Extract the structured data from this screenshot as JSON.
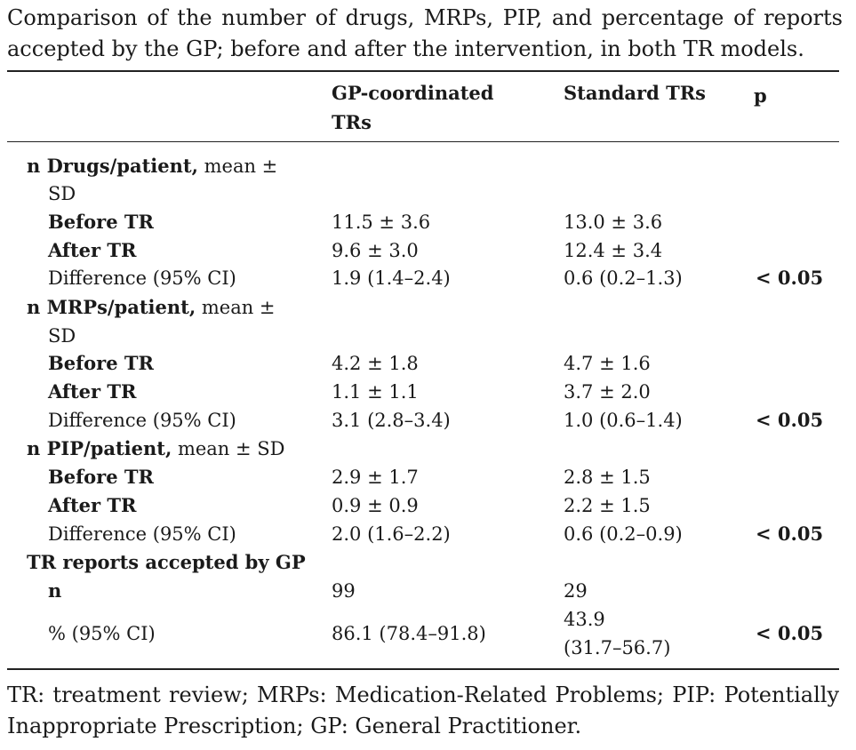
{
  "caption": "Comparison of the number of drugs, MRPs, PIP, and percentage of reports accepted by the GP; before and after the intervention, in both TR models.",
  "header": {
    "col1_line1": "GP-coordinated",
    "col1_line2": "TRs",
    "col2": "Standard TRs",
    "col3": "p"
  },
  "sections": {
    "drugs": {
      "title_bold": "n Drugs/patient,",
      "title_rest": " mean ±",
      "title_line2": "SD",
      "before_label": "Before TR",
      "before_gp": "11.5 ± 3.6",
      "before_std": "13.0 ± 3.6",
      "after_label": "After TR",
      "after_gp": "9.6 ± 3.0",
      "after_std": "12.4 ± 3.4",
      "diff_label": "Difference (95% CI)",
      "diff_gp": "1.9 (1.4–2.4)",
      "diff_std": "0.6 (0.2–1.3)",
      "p": "< 0.05"
    },
    "mrps": {
      "title_bold": "n MRPs/patient,",
      "title_rest": " mean ±",
      "title_line2": "SD",
      "before_label": "Before TR",
      "before_gp": "4.2 ± 1.8",
      "before_std": "4.7 ± 1.6",
      "after_label": "After TR",
      "after_gp": "1.1 ± 1.1",
      "after_std": "3.7 ± 2.0",
      "diff_label": "Difference (95% CI)",
      "diff_gp": "3.1 (2.8–3.4)",
      "diff_std": "1.0 (0.6–1.4)",
      "p": "< 0.05"
    },
    "pip": {
      "title_bold": "n PIP/patient,",
      "title_rest": " mean ± SD",
      "before_label": "Before TR",
      "before_gp": "2.9 ± 1.7",
      "before_std": "2.8 ± 1.5",
      "after_label": "After TR",
      "after_gp": "0.9 ± 0.9",
      "after_std": "2.2 ± 1.5",
      "diff_label": "Difference (95% CI)",
      "diff_gp": "2.0 (1.6–2.2)",
      "diff_std": "0.6 (0.2–0.9)",
      "p": "< 0.05"
    },
    "reports": {
      "title": "TR reports accepted by GP",
      "n_label": "n",
      "n_gp": "99",
      "n_std": "29",
      "pct_label": "% (95% CI)",
      "pct_gp": "86.1 (78.4–91.8)",
      "pct_std_line1": "43.9",
      "pct_std_line2": "(31.7–56.7)",
      "p": "< 0.05"
    }
  },
  "footnote": "TR: treatment review; MRPs: Medication-Related Problems; PIP: Potentially Inappropriate Prescription; GP: General Practitioner."
}
